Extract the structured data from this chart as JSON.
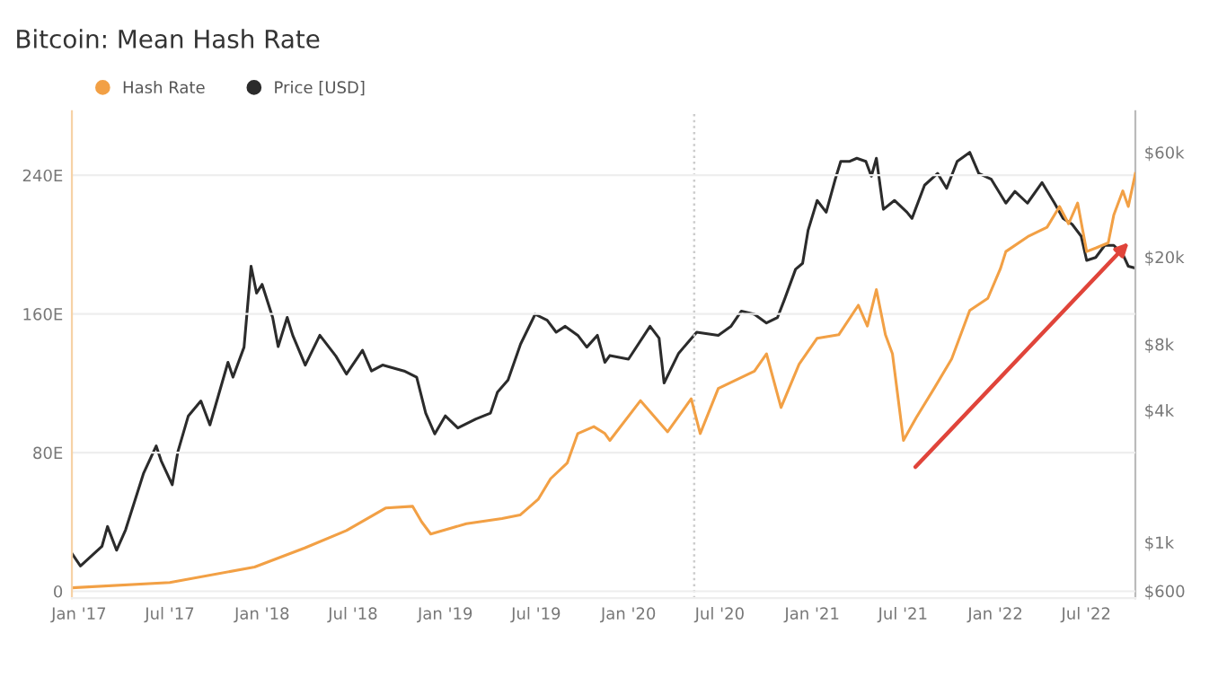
{
  "chart_data": {
    "type": "line",
    "title": "Bitcoin: Mean Hash Rate",
    "legend": "top left",
    "grid": "y",
    "marker": "none",
    "line_style": "solid",
    "log": "y2",
    "xlim": [
      "2016-12-18",
      "2022-10-07"
    ],
    "xticks": [
      {
        "value": "2017-01-01",
        "label": "Jan '17"
      },
      {
        "value": "2017-07-01",
        "label": "Jul '17"
      },
      {
        "value": "2018-01-01",
        "label": "Jan '18"
      },
      {
        "value": "2018-07-01",
        "label": "Jul '18"
      },
      {
        "value": "2019-01-01",
        "label": "Jan '19"
      },
      {
        "value": "2019-07-01",
        "label": "Jul '19"
      },
      {
        "value": "2020-01-01",
        "label": "Jan '20"
      },
      {
        "value": "2020-07-01",
        "label": "Jul '20"
      },
      {
        "value": "2021-01-01",
        "label": "Jan '21"
      },
      {
        "value": "2021-07-01",
        "label": "Jul '21"
      },
      {
        "value": "2022-01-01",
        "label": "Jan '22"
      },
      {
        "value": "2022-07-01",
        "label": "Jul '22"
      }
    ],
    "ylim": [
      -4,
      277
    ],
    "yticks": [
      0,
      {
        "value": 80,
        "label": "80E"
      },
      {
        "value": 160,
        "label": "160E"
      },
      {
        "value": 240,
        "label": "240E"
      }
    ],
    "y2lim": [
      556,
      92500
    ],
    "y2ticks": [
      {
        "value": 600,
        "label": "$600"
      },
      {
        "value": 1000,
        "label": "$1k"
      },
      {
        "value": 4000,
        "label": "$4k"
      },
      {
        "value": 8000,
        "label": "$8k"
      },
      {
        "value": 20000,
        "label": "$20k"
      },
      {
        "value": 60000,
        "label": "$60k"
      }
    ],
    "ref_lines": [
      {
        "axis": "x",
        "value": "2020-05-11",
        "color": "#cccccc",
        "line_style": "dotted"
      }
    ],
    "series": [
      {
        "name": "Hash Rate",
        "color": "#f2a045",
        "axis": "y",
        "x": [
          "2016-12-18",
          "2017-07-01",
          "2017-12-17",
          "2018-03-27",
          "2018-06-18",
          "2018-09-04",
          "2018-10-28",
          "2018-11-15",
          "2018-12-03",
          "2019-02-12",
          "2019-04-24",
          "2019-05-30",
          "2019-07-05",
          "2019-07-30",
          "2019-09-01",
          "2019-09-22",
          "2019-10-24",
          "2019-11-15",
          "2019-11-25",
          "2020-01-25",
          "2020-03-19",
          "2020-05-05",
          "2020-05-23",
          "2020-06-28",
          "2020-09-08",
          "2020-10-02",
          "2020-10-31",
          "2020-12-06",
          "2021-01-11",
          "2021-02-23",
          "2021-04-03",
          "2021-04-21",
          "2021-05-09",
          "2021-05-27",
          "2021-06-10",
          "2021-07-02",
          "2021-07-27",
          "2021-09-01",
          "2021-10-06",
          "2021-11-11",
          "2021-12-17",
          "2022-01-11",
          "2022-01-22",
          "2022-03-09",
          "2022-04-14",
          "2022-05-09",
          "2022-05-27",
          "2022-06-14",
          "2022-07-02",
          "2022-07-20",
          "2022-08-14",
          "2022-08-25",
          "2022-09-12",
          "2022-09-23",
          "2022-10-07"
        ],
        "values": [
          2,
          5,
          14,
          25,
          35,
          48,
          49,
          40,
          33,
          39,
          42,
          44,
          53,
          65,
          74,
          91,
          95,
          91,
          87,
          110,
          92,
          111,
          91,
          117,
          127,
          137,
          106,
          131,
          146,
          148,
          165,
          153,
          174,
          148,
          137,
          87,
          100,
          117,
          134,
          162,
          169,
          186,
          196,
          205,
          210,
          222,
          212,
          224,
          196,
          198,
          201,
          217,
          231,
          222,
          241
        ]
      },
      {
        "name": "Price [USD]",
        "color": "#2b2b2b",
        "axis": "y2",
        "x": [
          "2016-12-18",
          "2017-01-04",
          "2017-02-16",
          "2017-02-27",
          "2017-03-17",
          "2017-04-04",
          "2017-05-10",
          "2017-06-04",
          "2017-06-14",
          "2017-07-06",
          "2017-07-17",
          "2017-08-07",
          "2017-09-01",
          "2017-09-19",
          "2017-10-25",
          "2017-11-04",
          "2017-11-26",
          "2017-12-10",
          "2017-12-21",
          "2018-01-01",
          "2018-01-22",
          "2018-02-02",
          "2018-02-20",
          "2018-03-03",
          "2018-03-28",
          "2018-04-26",
          "2018-05-28",
          "2018-06-18",
          "2018-07-20",
          "2018-08-07",
          "2018-08-29",
          "2018-10-11",
          "2018-11-05",
          "2018-11-23",
          "2018-12-11",
          "2019-01-01",
          "2019-01-26",
          "2019-03-03",
          "2019-04-01",
          "2019-04-15",
          "2019-05-06",
          "2019-05-31",
          "2019-06-29",
          "2019-07-23",
          "2019-08-10",
          "2019-08-28",
          "2019-09-22",
          "2019-10-10",
          "2019-10-31",
          "2019-11-15",
          "2019-11-25",
          "2020-01-01",
          "2020-02-13",
          "2020-03-02",
          "2020-03-12",
          "2020-04-10",
          "2020-05-16",
          "2020-06-28",
          "2020-07-23",
          "2020-08-13",
          "2020-09-08",
          "2020-10-02",
          "2020-10-24",
          "2020-11-07",
          "2020-11-29",
          "2020-12-13",
          "2020-12-24",
          "2021-01-11",
          "2021-01-29",
          "2021-02-16",
          "2021-02-27",
          "2021-03-17",
          "2021-03-31",
          "2021-04-18",
          "2021-04-29",
          "2021-05-09",
          "2021-05-23",
          "2021-06-14",
          "2021-07-09",
          "2021-07-19",
          "2021-08-13",
          "2021-09-08",
          "2021-09-26",
          "2021-10-17",
          "2021-11-11",
          "2021-11-29",
          "2021-12-24",
          "2022-01-22",
          "2022-02-09",
          "2022-03-06",
          "2022-04-04",
          "2022-04-29",
          "2022-05-16",
          "2022-06-03",
          "2022-06-21",
          "2022-07-02",
          "2022-07-20",
          "2022-08-07",
          "2022-08-25",
          "2022-09-12",
          "2022-09-23",
          "2022-10-07"
        ],
        "values": [
          890,
          780,
          960,
          1180,
          920,
          1140,
          2070,
          2750,
          2350,
          1830,
          2580,
          3770,
          4410,
          3430,
          6620,
          5660,
          7760,
          18150,
          13700,
          15000,
          10600,
          7810,
          10600,
          8790,
          6430,
          8790,
          7060,
          5850,
          7510,
          6040,
          6430,
          6040,
          5660,
          3880,
          3120,
          3770,
          3320,
          3650,
          3880,
          4840,
          5490,
          8010,
          10960,
          10300,
          9080,
          9660,
          8790,
          7760,
          8790,
          6620,
          7110,
          6840,
          9660,
          8530,
          5330,
          7280,
          9080,
          8790,
          9640,
          11330,
          10960,
          10000,
          10600,
          12820,
          17580,
          18720,
          26500,
          36220,
          32000,
          45200,
          54600,
          54600,
          56400,
          54600,
          46700,
          56400,
          33000,
          36220,
          32000,
          30000,
          42500,
          48100,
          41100,
          54600,
          60000,
          48100,
          45200,
          35200,
          39800,
          35200,
          43700,
          35200,
          30000,
          28200,
          24900,
          19300,
          19900,
          22600,
          22600,
          20600,
          18150,
          17800
        ]
      }
    ]
  }
}
